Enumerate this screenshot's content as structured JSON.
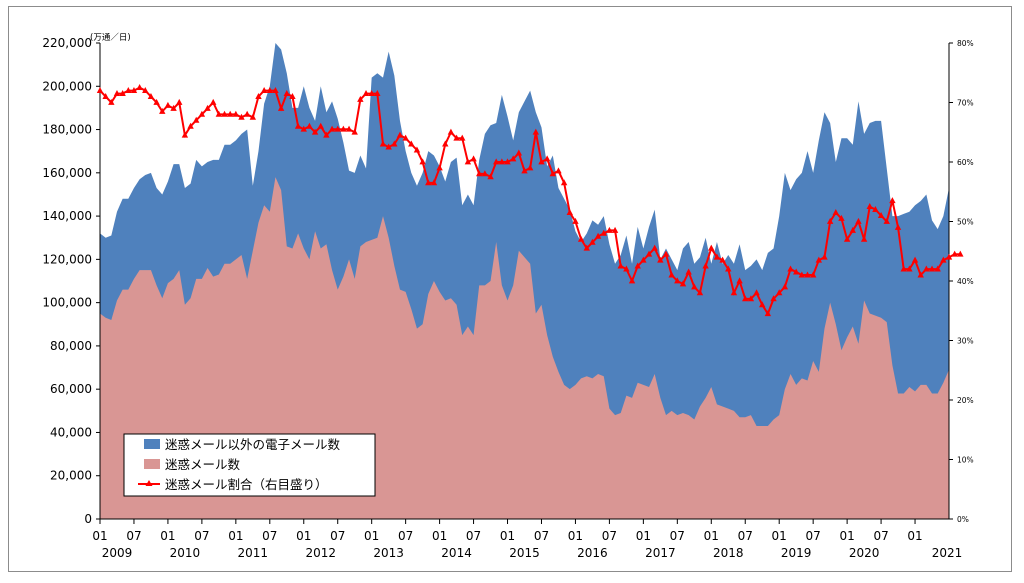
{
  "chart_data": {
    "type": "area",
    "unit_label": "(万通／日)",
    "left_axis": {
      "min": 0,
      "max": 220000,
      "ticks": [
        "0",
        "20,000",
        "40,000",
        "60,000",
        "80,000",
        "100,000",
        "120,000",
        "140,000",
        "160,000",
        "180,000",
        "200,000",
        "220,000"
      ]
    },
    "right_axis": {
      "min": 0,
      "max": 80,
      "ticks": [
        "0%",
        "10%",
        "20%",
        "30%",
        "40%",
        "50%",
        "60%",
        "70%",
        "80%"
      ]
    },
    "x_month_labels": [
      "01",
      "07",
      "01",
      "07",
      "01",
      "07",
      "01",
      "07",
      "01",
      "07",
      "01",
      "07",
      "01",
      "07",
      "01",
      "07",
      "01",
      "07",
      "01",
      "07",
      "01",
      "07",
      "01",
      "07",
      "01"
    ],
    "x_year_labels": [
      "2009",
      "2010",
      "2011",
      "2012",
      "2013",
      "2014",
      "2015",
      "2016",
      "2017",
      "2018",
      "2019",
      "2020",
      "2021"
    ],
    "start": "2009-01",
    "colors": {
      "total": "#4f81bd",
      "spam": "#d99694",
      "ratio": "#ff0000"
    },
    "legend": [
      {
        "label": "迷惑メール以外の電子メール数",
        "color": "#4f81bd",
        "kind": "area"
      },
      {
        "label": "迷惑メール数",
        "color": "#d99694",
        "kind": "area"
      },
      {
        "label": "迷惑メール割合（右目盛り）",
        "color": "#ff0000",
        "kind": "line"
      }
    ],
    "series": [
      {
        "name": "total_email",
        "values": [
          132000,
          130000,
          131000,
          142000,
          148000,
          148000,
          153000,
          157000,
          159000,
          160000,
          153000,
          150000,
          156000,
          164000,
          164000,
          153000,
          155000,
          166000,
          163000,
          165000,
          166000,
          166000,
          173000,
          173000,
          175000,
          178000,
          180000,
          154000,
          170000,
          192000,
          200000,
          220000,
          217000,
          206000,
          190000,
          190000,
          200000,
          190000,
          184000,
          200000,
          188000,
          193000,
          185000,
          174000,
          161000,
          160000,
          168000,
          162000,
          204000,
          206000,
          204000,
          216000,
          205000,
          184000,
          170000,
          160000,
          154000,
          160000,
          170000,
          168000,
          163000,
          156000,
          165000,
          167000,
          145000,
          150000,
          145000,
          166000,
          178000,
          182000,
          183000,
          196000,
          186000,
          175000,
          188000,
          193000,
          198000,
          188000,
          181000,
          163000,
          168000,
          153000,
          148000,
          143000,
          133000,
          128000,
          132000,
          138000,
          136000,
          140000,
          127000,
          118000,
          122000,
          131000,
          118000,
          135000,
          125000,
          135000,
          143000,
          120000,
          125000,
          120000,
          115000,
          125000,
          128000,
          118000,
          121000,
          130000,
          118000,
          128000,
          118000,
          122000,
          118000,
          127000,
          115000,
          117000,
          120000,
          115000,
          123000,
          125000,
          140000,
          160000,
          152000,
          157000,
          160000,
          170000,
          160000,
          175000,
          188000,
          183000,
          165000,
          176000,
          176000,
          173000,
          193000,
          178000,
          183000,
          184000,
          184000,
          162000,
          140000,
          140000,
          141000,
          142000,
          145000,
          147000,
          150000,
          138000,
          134000,
          140000,
          153000
        ],
        "legend_label_index": 0
      },
      {
        "name": "spam_email",
        "values": [
          95000,
          93000,
          92000,
          101000,
          106000,
          106000,
          111000,
          115000,
          115000,
          115000,
          108000,
          102000,
          109000,
          111000,
          115000,
          99000,
          102000,
          111000,
          111000,
          116000,
          112000,
          113000,
          118000,
          118000,
          120000,
          122000,
          111000,
          124000,
          137000,
          145000,
          142000,
          158000,
          152000,
          126000,
          125000,
          132000,
          125000,
          120000,
          133000,
          125000,
          127000,
          115000,
          106000,
          112000,
          120000,
          111000,
          126000,
          128000,
          129000,
          130000,
          140000,
          130000,
          117000,
          106000,
          105000,
          97000,
          88000,
          90000,
          104000,
          110000,
          105000,
          101000,
          102000,
          99000,
          85000,
          89000,
          85000,
          108000,
          108000,
          110000,
          128000,
          108000,
          101000,
          108000,
          124000,
          121000,
          118000,
          95000,
          99000,
          85000,
          75000,
          68000,
          62000,
          60000,
          62000,
          65000,
          66000,
          65000,
          67000,
          66000,
          51000,
          48000,
          49000,
          57000,
          56000,
          63000,
          62000,
          61000,
          67000,
          56000,
          48000,
          50000,
          48000,
          49000,
          48000,
          46000,
          52000,
          56000,
          61000,
          53000,
          52000,
          51000,
          50000,
          47000,
          47000,
          48000,
          43000,
          43000,
          43000,
          46000,
          48000,
          60000,
          67000,
          62000,
          65000,
          64000,
          73000,
          68000,
          88000,
          100000,
          90000,
          78000,
          84000,
          89000,
          81000,
          101000,
          95000,
          94000,
          93000,
          91000,
          71000,
          58000,
          58000,
          61000,
          59000,
          62000,
          62000,
          58000,
          58000,
          63000,
          69000
        ],
        "legend_label_index": 1
      },
      {
        "name": "spam_ratio_pct",
        "values": [
          72,
          71,
          70,
          71.5,
          71.5,
          72,
          72,
          72.5,
          72,
          71,
          70,
          68.5,
          69.5,
          69,
          70,
          64.5,
          66,
          67,
          68,
          69,
          70,
          68,
          68,
          68,
          68,
          67.5,
          68,
          67.5,
          71,
          72,
          72,
          72,
          69,
          71.5,
          71,
          66,
          65.5,
          66,
          65,
          66,
          64.5,
          65.5,
          65.5,
          65.5,
          65.5,
          65,
          70.5,
          71.5,
          71.5,
          71.5,
          63,
          62.5,
          63,
          64.5,
          64,
          63,
          62,
          60,
          56.5,
          56.5,
          59,
          63,
          65,
          64,
          64,
          60,
          60.5,
          58,
          58,
          57.5,
          60,
          60,
          60,
          60.5,
          61.5,
          58.5,
          59,
          65,
          60,
          60.5,
          58,
          58.5,
          56.5,
          51.5,
          50,
          47,
          45.5,
          46.5,
          47.5,
          48,
          48.5,
          48.5,
          42.5,
          42,
          40,
          42.5,
          43.5,
          44.5,
          45.5,
          43.5,
          44.5,
          41,
          40,
          39.5,
          41.5,
          39,
          38,
          42.5,
          45.5,
          44,
          43.5,
          42,
          38,
          40,
          37,
          37,
          38,
          36,
          34.5,
          37,
          38,
          39,
          42,
          41.5,
          41,
          41,
          41,
          43.5,
          44,
          50,
          51.5,
          50.5,
          47,
          48.5,
          50,
          47,
          52.5,
          52,
          51,
          50,
          53.5,
          49,
          42,
          42,
          43.5,
          41,
          42,
          42,
          42,
          43.5,
          44,
          44.5,
          44.5
        ],
        "legend_label_index": 2
      }
    ]
  }
}
